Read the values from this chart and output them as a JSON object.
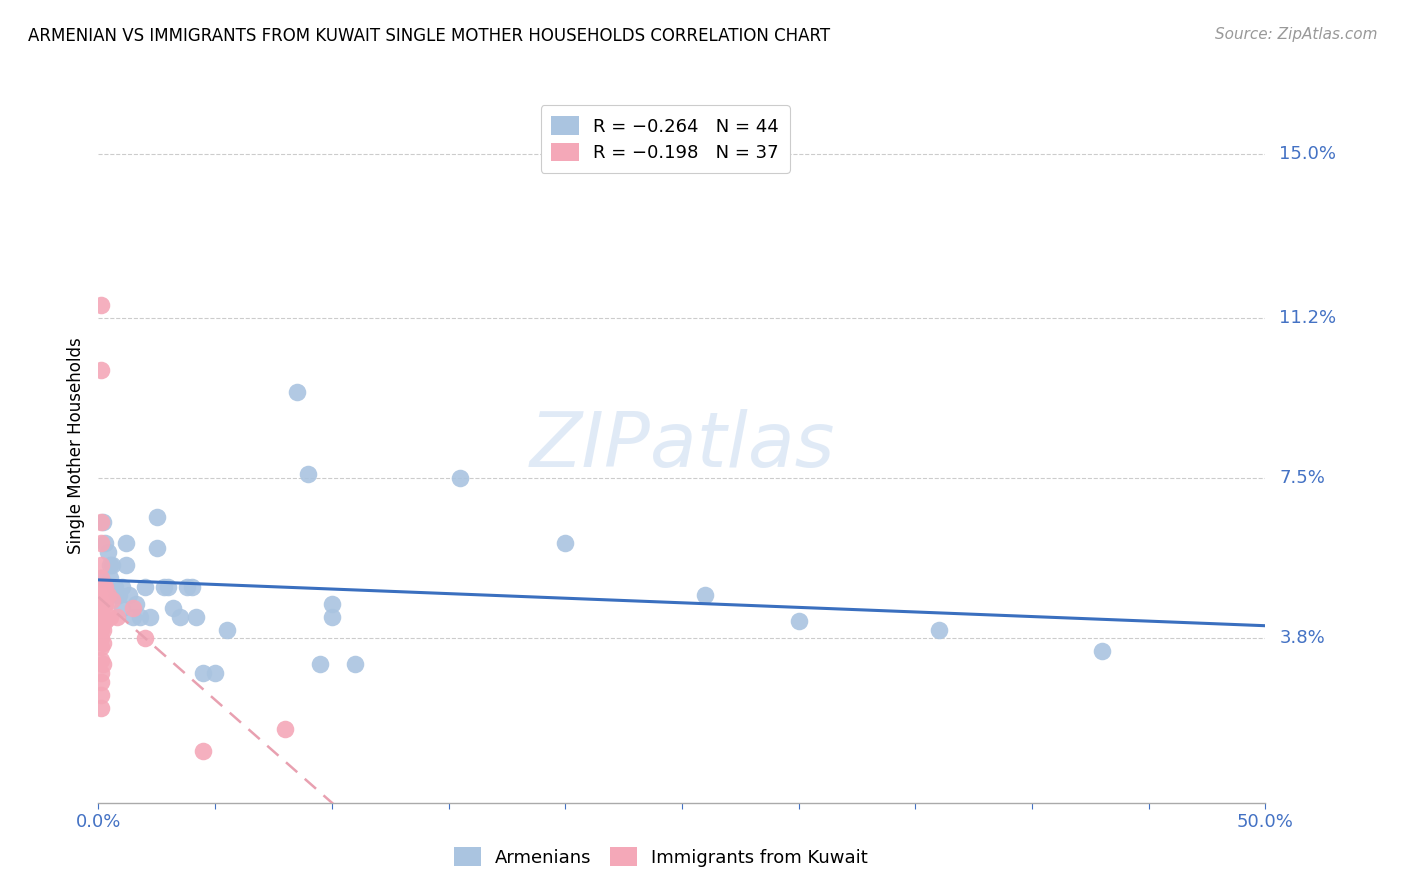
{
  "title": "ARMENIAN VS IMMIGRANTS FROM KUWAIT SINGLE MOTHER HOUSEHOLDS CORRELATION CHART",
  "source": "Source: ZipAtlas.com",
  "ylabel": "Single Mother Households",
  "ytick_labels": [
    "15.0%",
    "11.2%",
    "7.5%",
    "3.8%"
  ],
  "ytick_values": [
    0.15,
    0.112,
    0.075,
    0.038
  ],
  "xlim": [
    0.0,
    0.5
  ],
  "ylim": [
    0.0,
    0.165
  ],
  "xtick_positions": [
    0.0,
    0.05,
    0.1,
    0.15,
    0.2,
    0.25,
    0.3,
    0.35,
    0.4,
    0.45,
    0.5
  ],
  "armenian_color": "#aac4e0",
  "kuwait_color": "#f4a8b8",
  "trendline_armenian_color": "#3a6fbf",
  "trendline_kuwait_color": "#e8a0b0",
  "watermark": "ZIPatlas",
  "armenian_scatter": [
    [
      0.001,
      0.052
    ],
    [
      0.002,
      0.065
    ],
    [
      0.003,
      0.06
    ],
    [
      0.004,
      0.058
    ],
    [
      0.005,
      0.055
    ],
    [
      0.005,
      0.052
    ],
    [
      0.006,
      0.055
    ],
    [
      0.007,
      0.05
    ],
    [
      0.008,
      0.048
    ],
    [
      0.009,
      0.048
    ],
    [
      0.01,
      0.045
    ],
    [
      0.01,
      0.05
    ],
    [
      0.012,
      0.06
    ],
    [
      0.012,
      0.055
    ],
    [
      0.013,
      0.048
    ],
    [
      0.015,
      0.043
    ],
    [
      0.016,
      0.046
    ],
    [
      0.018,
      0.043
    ],
    [
      0.02,
      0.05
    ],
    [
      0.022,
      0.043
    ],
    [
      0.025,
      0.066
    ],
    [
      0.025,
      0.059
    ],
    [
      0.028,
      0.05
    ],
    [
      0.03,
      0.05
    ],
    [
      0.032,
      0.045
    ],
    [
      0.035,
      0.043
    ],
    [
      0.038,
      0.05
    ],
    [
      0.04,
      0.05
    ],
    [
      0.042,
      0.043
    ],
    [
      0.045,
      0.03
    ],
    [
      0.05,
      0.03
    ],
    [
      0.055,
      0.04
    ],
    [
      0.085,
      0.095
    ],
    [
      0.09,
      0.076
    ],
    [
      0.095,
      0.032
    ],
    [
      0.1,
      0.043
    ],
    [
      0.1,
      0.046
    ],
    [
      0.11,
      0.032
    ],
    [
      0.155,
      0.075
    ],
    [
      0.2,
      0.06
    ],
    [
      0.26,
      0.048
    ],
    [
      0.3,
      0.042
    ],
    [
      0.36,
      0.04
    ],
    [
      0.43,
      0.035
    ]
  ],
  "kuwait_scatter": [
    [
      0.001,
      0.115
    ],
    [
      0.001,
      0.1
    ],
    [
      0.001,
      0.065
    ],
    [
      0.001,
      0.06
    ],
    [
      0.001,
      0.055
    ],
    [
      0.001,
      0.052
    ],
    [
      0.001,
      0.05
    ],
    [
      0.001,
      0.048
    ],
    [
      0.001,
      0.047
    ],
    [
      0.001,
      0.045
    ],
    [
      0.001,
      0.043
    ],
    [
      0.001,
      0.042
    ],
    [
      0.001,
      0.04
    ],
    [
      0.001,
      0.038
    ],
    [
      0.001,
      0.036
    ],
    [
      0.001,
      0.033
    ],
    [
      0.001,
      0.03
    ],
    [
      0.001,
      0.028
    ],
    [
      0.001,
      0.025
    ],
    [
      0.001,
      0.022
    ],
    [
      0.002,
      0.05
    ],
    [
      0.002,
      0.047
    ],
    [
      0.002,
      0.043
    ],
    [
      0.002,
      0.04
    ],
    [
      0.002,
      0.037
    ],
    [
      0.002,
      0.032
    ],
    [
      0.003,
      0.05
    ],
    [
      0.003,
      0.046
    ],
    [
      0.003,
      0.042
    ],
    [
      0.004,
      0.048
    ],
    [
      0.005,
      0.043
    ],
    [
      0.006,
      0.047
    ],
    [
      0.008,
      0.043
    ],
    [
      0.015,
      0.045
    ],
    [
      0.02,
      0.038
    ],
    [
      0.045,
      0.012
    ],
    [
      0.08,
      0.017
    ]
  ],
  "legend_entries": [
    {
      "label": "R = −0.264   N = 44",
      "color": "#aac4e0"
    },
    {
      "label": "R = −0.198   N = 37",
      "color": "#f4a8b8"
    }
  ],
  "bottom_legend": [
    {
      "label": "Armenians",
      "color": "#aac4e0"
    },
    {
      "label": "Immigrants from Kuwait",
      "color": "#f4a8b8"
    }
  ]
}
